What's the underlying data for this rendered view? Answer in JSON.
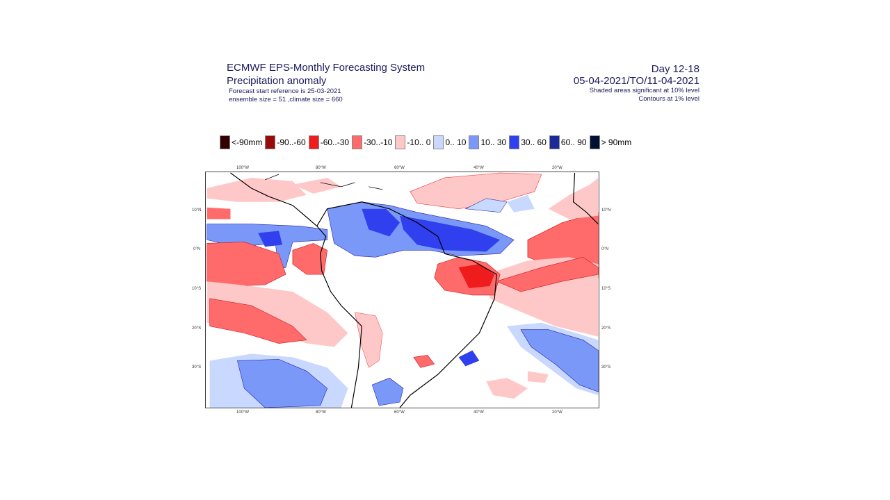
{
  "header": {
    "system": "ECMWF EPS-Monthly Forecasting System",
    "parameter": "Precipitation anomaly",
    "forecast_start": "Forecast start reference is 25-03-2021",
    "sizes": "ensemble size = 51  ,climate size = 660",
    "day_range": "Day 12-18",
    "date_range": "05-04-2021/TO/11-04-2021",
    "shading_note": "Shaded areas significant at 10% level",
    "contour_note": "Contours at 1% level"
  },
  "legend": [
    {
      "label": "<-90mm",
      "color": "#330000"
    },
    {
      "label": "-90..-60",
      "color": "#990a0a"
    },
    {
      "label": "-60..-30",
      "color": "#ee1c1c"
    },
    {
      "label": "-30..-10",
      "color": "#ff6b6b"
    },
    {
      "label": "-10..  0",
      "color": "#ffc8c8"
    },
    {
      "label": "0.. 10",
      "color": "#c9d8ff"
    },
    {
      "label": "10.. 30",
      "color": "#7a98f8"
    },
    {
      "label": "30.. 60",
      "color": "#3040ee"
    },
    {
      "label": "60.. 90",
      "color": "#1a2a99"
    },
    {
      "label": ">  90mm",
      "color": "#001133"
    }
  ],
  "map": {
    "lon_ticks": [
      "100°W",
      "80°W",
      "60°W",
      "40°W",
      "20°W"
    ],
    "lat_ticks": [
      "10°N",
      "0°N",
      "10°S",
      "20°S",
      "30°S"
    ]
  }
}
